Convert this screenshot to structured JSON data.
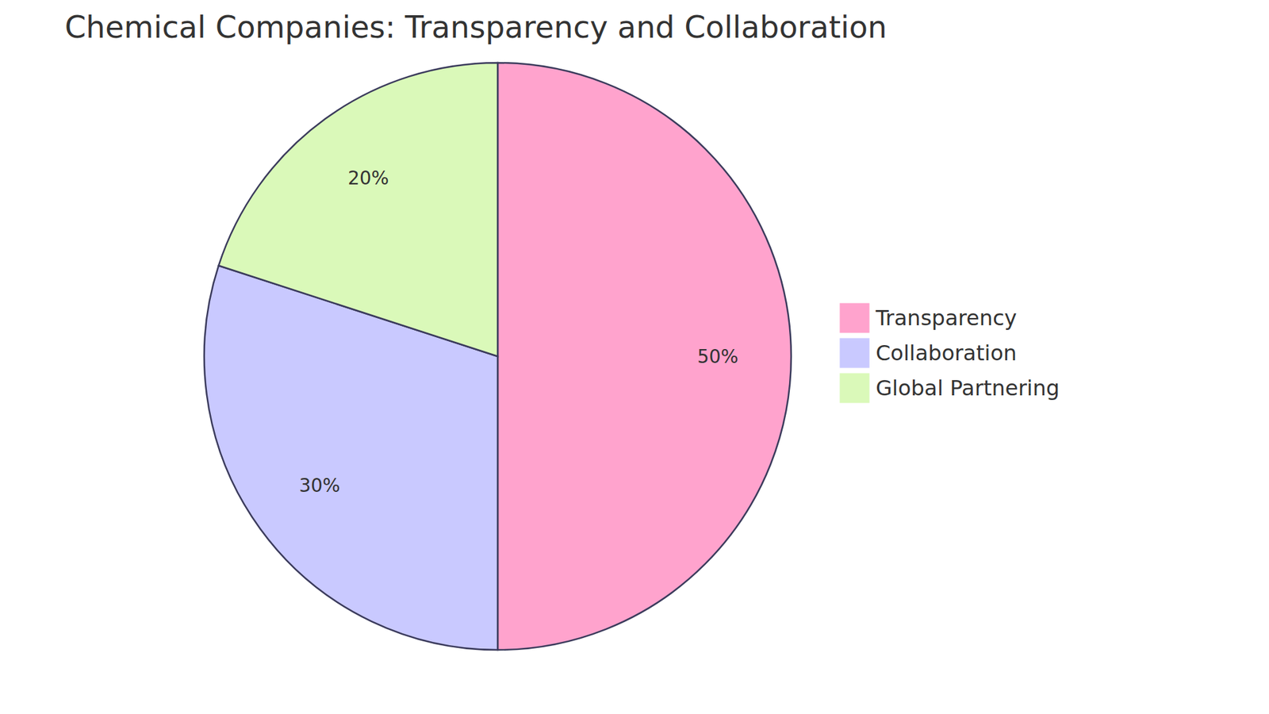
{
  "chart_data": {
    "type": "pie",
    "title": "Chemical Companies: Transparency and Collaboration",
    "categories": [
      "Transparency",
      "Collaboration",
      "Global Partnering"
    ],
    "values": [
      50,
      30,
      20
    ],
    "value_labels": [
      "50%",
      "30%",
      "20%"
    ],
    "colors": [
      "#ffa3cd",
      "#c9c9ff",
      "#daf9b9"
    ],
    "data_labels": true,
    "legend": "right"
  }
}
